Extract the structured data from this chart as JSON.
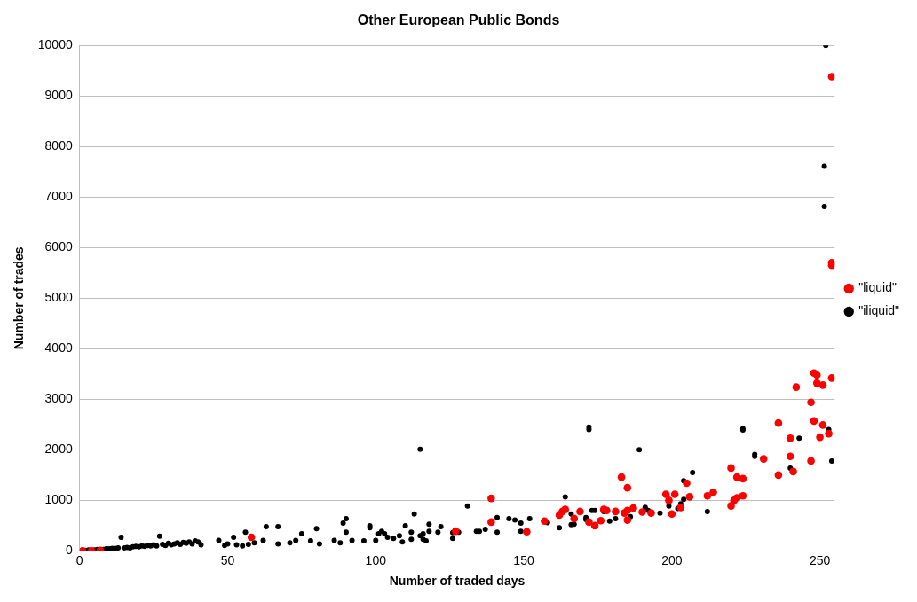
{
  "chart_data": {
    "type": "scatter",
    "title": "Other European Public Bonds",
    "xlabel": "Number of traded days",
    "ylabel": "Number of trades",
    "xlim": [
      0,
      255
    ],
    "xticks": [
      0,
      50,
      100,
      150,
      200,
      250
    ],
    "ylim": [
      0,
      10000
    ],
    "yticks": [
      0,
      1000,
      2000,
      3000,
      4000,
      5000,
      6000,
      7000,
      8000,
      9000,
      10000
    ],
    "grid": "y",
    "legend": "right",
    "marker": "circle",
    "series": [
      {
        "name": "\"liquid\"",
        "color": "#ff0000",
        "x": [
          1,
          4,
          7,
          58,
          127,
          139,
          139,
          151,
          157,
          162,
          163,
          164,
          167,
          169,
          172,
          174,
          176,
          177,
          178,
          181,
          183,
          185,
          184,
          185,
          185,
          187,
          190,
          193,
          198,
          199,
          201,
          200,
          203,
          205,
          206,
          212,
          214,
          220,
          222,
          224,
          220,
          221,
          222,
          224,
          254,
          254,
          254,
          248,
          249,
          254,
          249,
          251,
          242,
          247,
          236,
          248,
          251,
          240,
          250,
          253,
          231,
          240,
          247,
          236,
          241
        ],
        "values": [
          0,
          0,
          10,
          270,
          390,
          1040,
          570,
          380,
          590,
          710,
          780,
          820,
          640,
          780,
          570,
          500,
          600,
          820,
          800,
          780,
          1460,
          1250,
          750,
          800,
          610,
          850,
          770,
          750,
          1120,
          1000,
          1120,
          730,
          860,
          1340,
          1070,
          1090,
          1160,
          1640,
          1460,
          1430,
          890,
          1000,
          1050,
          1090,
          9380,
          5650,
          5700,
          3520,
          3480,
          3420,
          3320,
          3280,
          3240,
          2940,
          2530,
          2570,
          2490,
          2230,
          2250,
          2320,
          1820,
          1870,
          1780,
          1500,
          1570
        ]
      },
      {
        "name": "\"iliquid\"",
        "color": "#000000",
        "x": [
          252,
          251.5,
          251.5,
          224,
          228,
          243,
          253,
          254,
          240,
          172,
          172,
          189,
          207,
          204,
          164,
          152,
          158,
          162,
          166,
          166,
          167,
          171,
          171,
          173,
          174,
          177,
          179,
          181,
          186,
          191,
          192,
          196,
          199,
          202,
          203,
          204,
          212,
          224,
          228,
          115,
          131,
          113,
          90,
          89,
          90,
          86,
          88,
          92,
          96,
          98,
          98,
          100,
          101,
          102,
          103,
          104,
          106,
          108,
          109,
          110,
          112,
          112,
          115,
          116,
          116,
          117,
          118,
          118,
          121,
          122,
          126,
          126,
          128,
          134,
          135,
          137,
          141,
          141,
          145,
          147,
          149,
          149,
          14,
          27,
          63,
          67,
          56,
          52,
          47,
          40,
          41,
          75,
          80,
          78,
          81,
          62,
          67,
          71,
          73,
          59,
          2,
          3,
          5,
          6,
          8,
          9,
          10,
          11,
          12,
          13,
          15,
          16,
          17,
          18,
          19,
          20,
          21,
          22,
          23,
          24,
          25,
          26,
          28,
          29,
          30,
          31,
          32,
          33,
          34,
          35,
          36,
          37,
          38,
          39,
          49,
          50,
          53,
          55,
          57
        ],
        "values": [
          10000,
          7610,
          6810,
          2390,
          1870,
          2230,
          2400,
          1780,
          1640,
          2400,
          2450,
          2000,
          1550,
          1390,
          1070,
          640,
          560,
          460,
          730,
          520,
          530,
          660,
          620,
          800,
          800,
          780,
          590,
          640,
          680,
          860,
          800,
          750,
          890,
          840,
          930,
          1020,
          780,
          2420,
          1910,
          2010,
          890,
          730,
          640,
          550,
          370,
          210,
          160,
          210,
          200,
          460,
          500,
          210,
          340,
          390,
          340,
          270,
          250,
          300,
          180,
          500,
          370,
          230,
          300,
          230,
          340,
          200,
          530,
          390,
          370,
          480,
          360,
          250,
          370,
          390,
          390,
          430,
          660,
          370,
          640,
          610,
          550,
          390,
          270,
          290,
          480,
          480,
          370,
          270,
          210,
          180,
          120,
          340,
          440,
          200,
          140,
          210,
          140,
          160,
          210,
          160,
          10,
          20,
          20,
          30,
          30,
          40,
          40,
          50,
          50,
          60,
          60,
          70,
          60,
          80,
          90,
          80,
          100,
          90,
          110,
          100,
          120,
          100,
          130,
          110,
          150,
          120,
          140,
          160,
          130,
          170,
          150,
          180,
          140,
          200,
          110,
          140,
          120,
          100,
          130
        ]
      }
    ]
  }
}
